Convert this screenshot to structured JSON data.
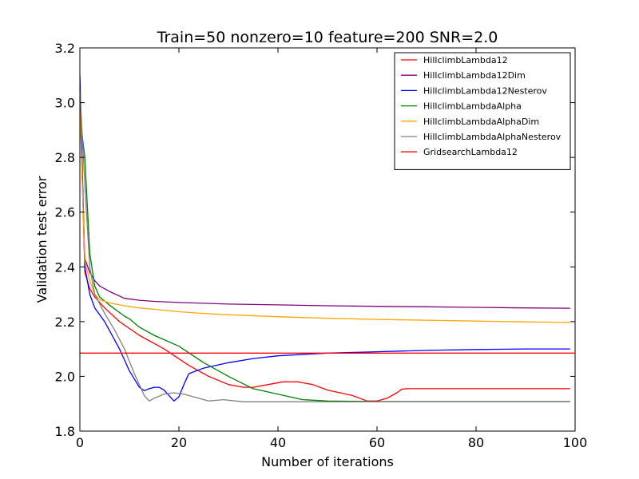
{
  "chart_data": {
    "type": "line",
    "title": "Train=50 nonzero=10 feature=200 SNR=2.0",
    "xlabel": "Number of iterations",
    "ylabel": "Validation test error",
    "xlim": [
      0,
      100
    ],
    "ylim": [
      1.8,
      3.2
    ],
    "xticks": [
      0,
      20,
      40,
      60,
      80,
      100
    ],
    "yticks": [
      1.8,
      2.0,
      2.2,
      2.4,
      2.6,
      2.8,
      3.0,
      3.2
    ],
    "xtick_labels": [
      "0",
      "20",
      "40",
      "60",
      "80",
      "100"
    ],
    "ytick_labels": [
      "1.8",
      "2.0",
      "2.2",
      "2.4",
      "2.6",
      "2.8",
      "3.0",
      "3.2"
    ],
    "grid": false,
    "legend_position": "top-right",
    "series": [
      {
        "name": "HillclimbLambda12",
        "color": "#ff0000",
        "x": [
          0,
          1,
          2,
          3,
          5,
          8,
          12,
          17,
          22,
          26,
          30,
          33,
          35,
          38,
          41,
          44,
          47,
          50,
          55,
          58,
          60,
          62,
          64,
          65,
          66,
          70,
          80,
          90,
          99
        ],
        "y": [
          3.05,
          2.38,
          2.32,
          2.29,
          2.25,
          2.2,
          2.15,
          2.1,
          2.04,
          2.0,
          1.97,
          1.96,
          1.96,
          1.97,
          1.98,
          1.98,
          1.97,
          1.95,
          1.93,
          1.91,
          1.91,
          1.92,
          1.94,
          1.953,
          1.955,
          1.955,
          1.955,
          1.955,
          1.955
        ]
      },
      {
        "name": "HillclimbLambda12Dim",
        "color": "#800080",
        "x": [
          0,
          1,
          2,
          3,
          4,
          6,
          9,
          12,
          15,
          20,
          25,
          30,
          40,
          50,
          60,
          70,
          80,
          90,
          99
        ],
        "y": [
          3.0,
          2.43,
          2.38,
          2.35,
          2.33,
          2.31,
          2.285,
          2.278,
          2.274,
          2.27,
          2.267,
          2.264,
          2.261,
          2.258,
          2.256,
          2.254,
          2.252,
          2.25,
          2.249
        ]
      },
      {
        "name": "HillclimbLambda12Nesterov",
        "color": "#0000ff",
        "x": [
          0,
          1,
          2,
          3,
          5,
          8,
          10,
          12,
          13,
          14,
          15,
          16,
          17,
          18,
          19,
          20,
          21,
          22,
          25,
          30,
          35,
          40,
          50,
          60,
          70,
          80,
          90,
          99
        ],
        "y": [
          3.1,
          2.4,
          2.3,
          2.25,
          2.2,
          2.1,
          2.02,
          1.96,
          1.948,
          1.955,
          1.96,
          1.96,
          1.95,
          1.93,
          1.91,
          1.925,
          1.97,
          2.01,
          2.03,
          2.05,
          2.065,
          2.075,
          2.085,
          2.09,
          2.095,
          2.098,
          2.1,
          2.1
        ]
      },
      {
        "name": "HillclimbLambdaAlpha",
        "color": "#008000",
        "x": [
          0,
          1,
          2,
          3,
          4,
          6,
          9,
          10,
          12,
          15,
          20,
          25,
          30,
          35,
          40,
          45,
          50,
          60,
          70,
          80,
          90,
          99
        ],
        "y": [
          2.95,
          2.8,
          2.45,
          2.33,
          2.29,
          2.26,
          2.22,
          2.21,
          2.18,
          2.15,
          2.11,
          2.05,
          2.0,
          1.955,
          1.935,
          1.915,
          1.91,
          1.908,
          1.908,
          1.908,
          1.908,
          1.908
        ]
      },
      {
        "name": "HillclimbLambdaAlphaDim",
        "color": "#ffa500",
        "x": [
          0,
          1,
          2,
          3,
          4,
          6,
          9,
          12,
          15,
          20,
          25,
          30,
          40,
          50,
          60,
          70,
          80,
          90,
          99
        ],
        "y": [
          2.98,
          2.42,
          2.35,
          2.3,
          2.28,
          2.268,
          2.258,
          2.25,
          2.245,
          2.236,
          2.23,
          2.225,
          2.218,
          2.212,
          2.208,
          2.205,
          2.202,
          2.199,
          2.197
        ]
      },
      {
        "name": "HillclimbLambdaAlphaNesterov",
        "color": "#808080",
        "x": [
          0,
          1,
          2,
          3,
          5,
          7,
          9,
          11,
          13,
          14,
          15,
          17,
          19,
          21,
          23,
          26,
          29,
          33,
          40,
          50,
          60,
          70,
          80,
          90,
          99
        ],
        "y": [
          3.05,
          2.7,
          2.4,
          2.3,
          2.23,
          2.17,
          2.1,
          2.01,
          1.93,
          1.91,
          1.92,
          1.935,
          1.94,
          1.935,
          1.925,
          1.91,
          1.915,
          1.907,
          1.907,
          1.907,
          1.907,
          1.907,
          1.907,
          1.907,
          1.907
        ]
      },
      {
        "name": "GridsearchLambda12",
        "color": "#ff0000",
        "x": [
          0,
          100
        ],
        "y": [
          2.085,
          2.085
        ]
      }
    ]
  }
}
